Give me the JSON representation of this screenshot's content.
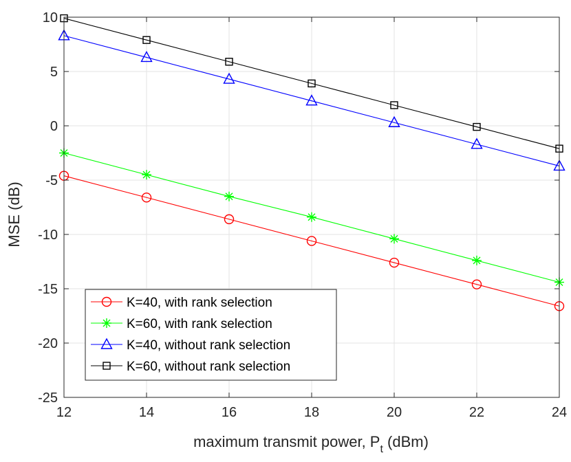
{
  "chart_data": {
    "type": "line",
    "title": "",
    "xlabel": "maximum transmit power, P",
    "xlabel_subscript": "t",
    "xlabel_suffix": " (dBm)",
    "ylabel": "MSE (dB)",
    "xlim": [
      12,
      24
    ],
    "ylim": [
      -25,
      10
    ],
    "xticks": [
      12,
      14,
      16,
      18,
      20,
      22,
      24
    ],
    "yticks": [
      10,
      5,
      0,
      -5,
      -10,
      -15,
      -20,
      -25
    ],
    "grid": true,
    "legend_position": "bottom-left",
    "x": [
      12,
      14,
      16,
      18,
      20,
      22,
      24
    ],
    "series": [
      {
        "name": "K=40, with rank selection",
        "color": "#ff0000",
        "marker": "circle",
        "values": [
          -4.6,
          -6.6,
          -8.6,
          -10.6,
          -12.6,
          -14.6,
          -16.6
        ]
      },
      {
        "name": "K=60, with rank selection",
        "color": "#00ff00",
        "marker": "asterisk",
        "values": [
          -2.5,
          -4.5,
          -6.5,
          -8.4,
          -10.4,
          -12.4,
          -14.4
        ]
      },
      {
        "name": "K=40, without rank selection",
        "color": "#0000ff",
        "marker": "triangle",
        "values": [
          8.3,
          6.3,
          4.3,
          2.3,
          0.3,
          -1.7,
          -3.7
        ]
      },
      {
        "name": "K=60, without rank selection",
        "color": "#000000",
        "marker": "square",
        "values": [
          9.9,
          7.9,
          5.9,
          3.9,
          1.9,
          -0.1,
          -2.1
        ]
      }
    ]
  }
}
